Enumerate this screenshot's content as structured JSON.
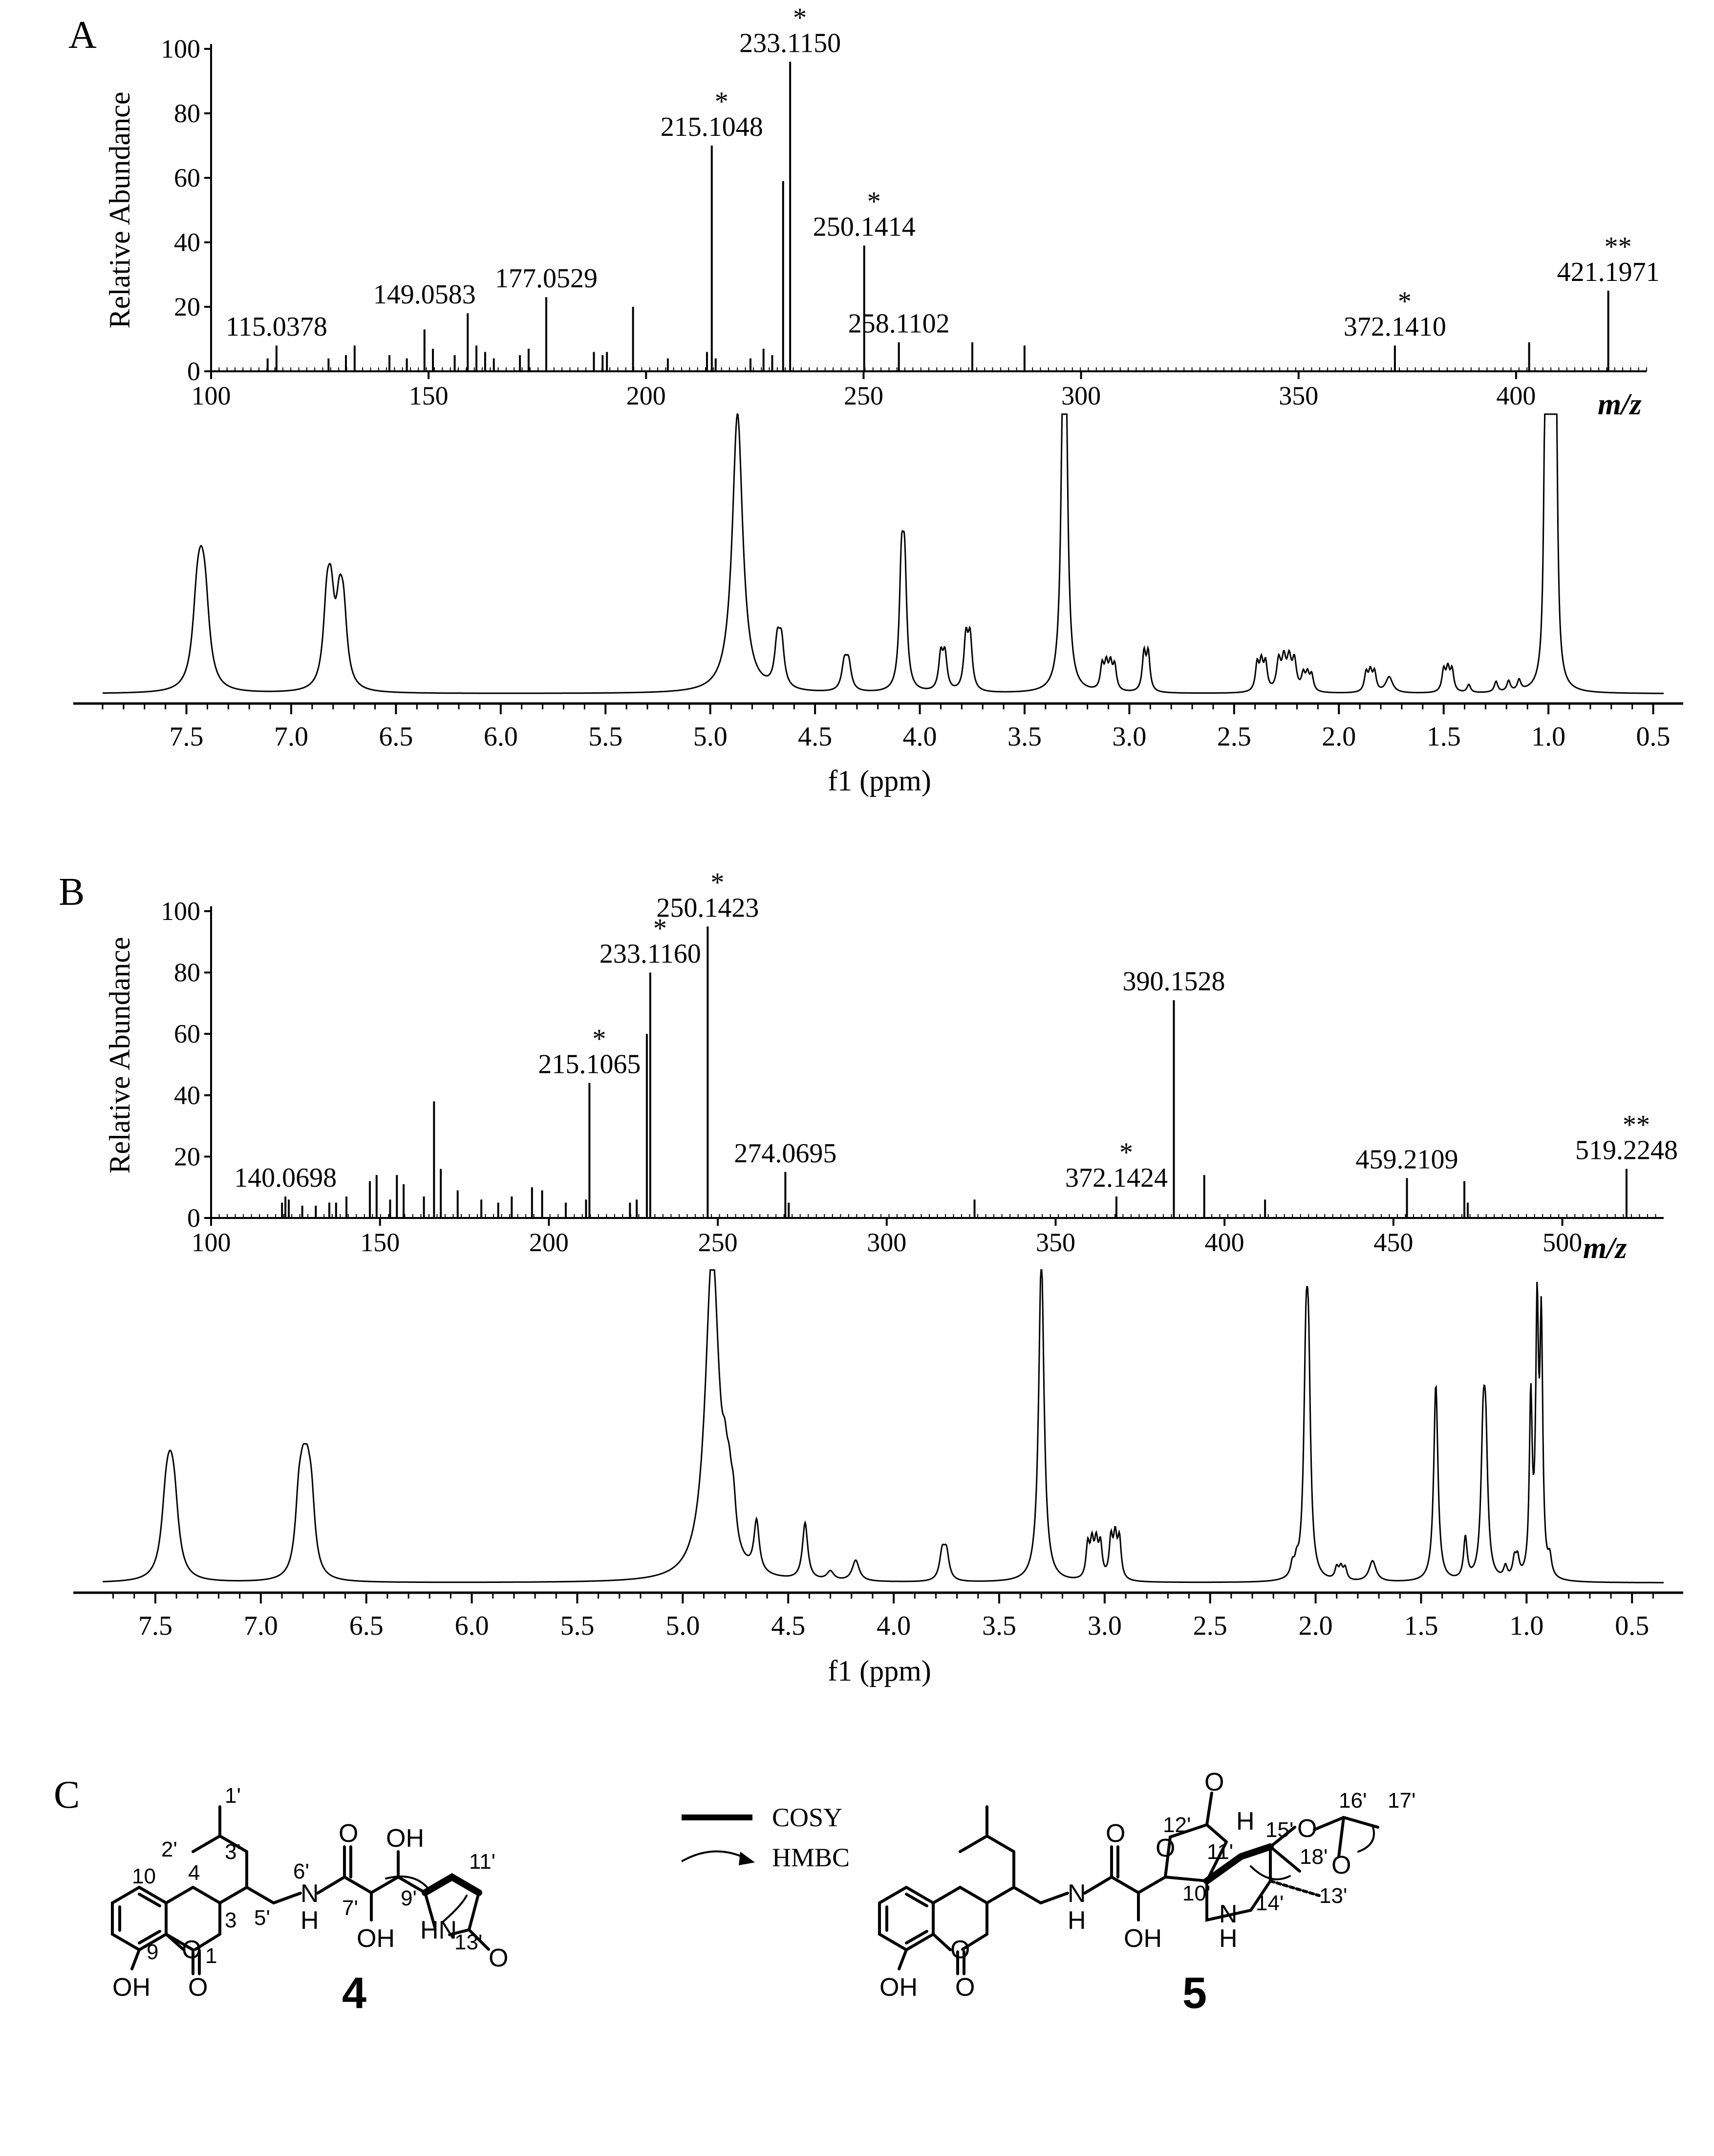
{
  "panel_labels": {
    "a": "A",
    "b": "B",
    "c": "C"
  },
  "ms_axis": {
    "ylabel": "Relative Abundance",
    "xunit": "m/z"
  },
  "nmr_axis": {
    "xlabel": "f1 (ppm)"
  },
  "chart_data": [
    {
      "id": "A-ms",
      "type": "bar",
      "xlim": [
        100,
        430
      ],
      "ylim": [
        0,
        100
      ],
      "xticks": [
        100,
        150,
        200,
        250,
        300,
        350,
        400
      ],
      "yticks": [
        0,
        20,
        40,
        60,
        80,
        100
      ],
      "peaks": [
        {
          "x": 115.0378,
          "y": 8
        },
        {
          "x": 113,
          "y": 4
        },
        {
          "x": 127,
          "y": 4
        },
        {
          "x": 131,
          "y": 5
        },
        {
          "x": 133,
          "y": 8
        },
        {
          "x": 141,
          "y": 5
        },
        {
          "x": 145,
          "y": 4
        },
        {
          "x": 149.0583,
          "y": 13
        },
        {
          "x": 151,
          "y": 7
        },
        {
          "x": 156,
          "y": 5
        },
        {
          "x": 159,
          "y": 18
        },
        {
          "x": 161,
          "y": 8
        },
        {
          "x": 163,
          "y": 6
        },
        {
          "x": 165,
          "y": 4
        },
        {
          "x": 171,
          "y": 5
        },
        {
          "x": 173,
          "y": 7
        },
        {
          "x": 177.0529,
          "y": 23
        },
        {
          "x": 188,
          "y": 6
        },
        {
          "x": 190,
          "y": 5
        },
        {
          "x": 191,
          "y": 6
        },
        {
          "x": 197,
          "y": 20
        },
        {
          "x": 205,
          "y": 4
        },
        {
          "x": 214,
          "y": 6
        },
        {
          "x": 215.1048,
          "y": 70
        },
        {
          "x": 216,
          "y": 4
        },
        {
          "x": 224,
          "y": 4
        },
        {
          "x": 227,
          "y": 7
        },
        {
          "x": 229,
          "y": 5
        },
        {
          "x": 231.5,
          "y": 59
        },
        {
          "x": 233.115,
          "y": 96
        },
        {
          "x": 250.1414,
          "y": 39
        },
        {
          "x": 258.1102,
          "y": 9
        },
        {
          "x": 275,
          "y": 9
        },
        {
          "x": 287,
          "y": 8
        },
        {
          "x": 372.141,
          "y": 8
        },
        {
          "x": 403,
          "y": 9
        },
        {
          "x": 421.1971,
          "y": 25
        }
      ],
      "labels": [
        {
          "x": 115.0378,
          "y": 8,
          "text": "115.0378",
          "star": ""
        },
        {
          "x": 149.0583,
          "y": 18,
          "text": "149.0583",
          "star": ""
        },
        {
          "x": 177.0529,
          "y": 23,
          "text": "177.0529",
          "star": ""
        },
        {
          "x": 215.1048,
          "y": 70,
          "text": "215.1048",
          "star": "*"
        },
        {
          "x": 233.115,
          "y": 96,
          "text": "233.1150",
          "star": "*"
        },
        {
          "x": 250.1414,
          "y": 39,
          "text": "250.1414",
          "star": "*"
        },
        {
          "x": 258.1102,
          "y": 9,
          "text": "258.1102",
          "star": ""
        },
        {
          "x": 372.141,
          "y": 8,
          "text": "372.1410",
          "star": "*"
        },
        {
          "x": 421.1971,
          "y": 25,
          "text": "421.1971",
          "star": "**"
        }
      ]
    },
    {
      "id": "A-nmr",
      "type": "line",
      "xlim": [
        7.9,
        0.45
      ],
      "xticks": [
        7.5,
        7.0,
        6.5,
        6.0,
        5.5,
        5.0,
        4.5,
        4.0,
        3.5,
        3.0,
        2.5,
        2.0,
        1.5,
        1.0,
        0.5
      ],
      "peaks": [
        {
          "x": 7.43,
          "h": 0.25,
          "w": 0.025,
          "n": 3,
          "s": 0.02
        },
        {
          "x": 6.82,
          "h": 0.27,
          "w": 0.02,
          "n": 2,
          "s": 0.02
        },
        {
          "x": 6.76,
          "h": 0.24,
          "w": 0.02,
          "n": 2,
          "s": 0.02
        },
        {
          "x": 4.87,
          "h": 1.05,
          "w": 0.03,
          "n": 1,
          "s": 0
        },
        {
          "x": 4.67,
          "h": 0.16,
          "w": 0.015,
          "n": 2,
          "s": 0.02
        },
        {
          "x": 4.35,
          "h": 0.1,
          "w": 0.015,
          "n": 2,
          "s": 0.02
        },
        {
          "x": 4.08,
          "h": 0.42,
          "w": 0.012,
          "n": 2,
          "s": 0.015
        },
        {
          "x": 3.89,
          "h": 0.13,
          "w": 0.012,
          "n": 2,
          "s": 0.02
        },
        {
          "x": 3.77,
          "h": 0.19,
          "w": 0.012,
          "n": 2,
          "s": 0.02
        },
        {
          "x": 3.31,
          "h": 1.0,
          "w": 0.012,
          "n": 2,
          "s": 0.008
        },
        {
          "x": 3.1,
          "h": 0.09,
          "w": 0.01,
          "n": 4,
          "s": 0.02
        },
        {
          "x": 2.92,
          "h": 0.14,
          "w": 0.01,
          "n": 2,
          "s": 0.02
        },
        {
          "x": 2.37,
          "h": 0.1,
          "w": 0.01,
          "n": 3,
          "s": 0.02
        },
        {
          "x": 2.25,
          "h": 0.11,
          "w": 0.012,
          "n": 4,
          "s": 0.025
        },
        {
          "x": 2.15,
          "h": 0.06,
          "w": 0.01,
          "n": 3,
          "s": 0.02
        },
        {
          "x": 1.85,
          "h": 0.07,
          "w": 0.01,
          "n": 3,
          "s": 0.02
        },
        {
          "x": 1.76,
          "h": 0.06,
          "w": 0.02,
          "n": 1,
          "s": 0
        },
        {
          "x": 1.48,
          "h": 0.08,
          "w": 0.01,
          "n": 3,
          "s": 0.02
        },
        {
          "x": 1.38,
          "h": 0.03,
          "w": 0.01,
          "n": 1,
          "s": 0
        },
        {
          "x": 1.25,
          "h": 0.04,
          "w": 0.01,
          "n": 1,
          "s": 0
        },
        {
          "x": 1.19,
          "h": 0.04,
          "w": 0.01,
          "n": 1,
          "s": 0
        },
        {
          "x": 1.14,
          "h": 0.04,
          "w": 0.01,
          "n": 1,
          "s": 0
        },
        {
          "x": 1.0,
          "h": 1.0,
          "w": 0.008,
          "n": 3,
          "s": 0.015
        },
        {
          "x": 0.97,
          "h": 0.95,
          "w": 0.008,
          "n": 2,
          "s": 0.012
        }
      ]
    },
    {
      "id": "B-ms",
      "type": "bar",
      "xlim": [
        100,
        530
      ],
      "ylim": [
        0,
        100
      ],
      "xticks": [
        100,
        150,
        200,
        250,
        300,
        350,
        400,
        450,
        500
      ],
      "yticks": [
        0,
        20,
        40,
        60,
        80,
        100
      ],
      "peaks": [
        {
          "x": 121,
          "y": 5
        },
        {
          "x": 122,
          "y": 7
        },
        {
          "x": 123,
          "y": 6
        },
        {
          "x": 127,
          "y": 4
        },
        {
          "x": 131,
          "y": 4
        },
        {
          "x": 135,
          "y": 5
        },
        {
          "x": 137,
          "y": 5
        },
        {
          "x": 140.0698,
          "y": 7
        },
        {
          "x": 147,
          "y": 12
        },
        {
          "x": 149,
          "y": 14
        },
        {
          "x": 153,
          "y": 6
        },
        {
          "x": 155,
          "y": 14
        },
        {
          "x": 157,
          "y": 11
        },
        {
          "x": 163,
          "y": 7
        },
        {
          "x": 166,
          "y": 38
        },
        {
          "x": 168,
          "y": 16
        },
        {
          "x": 173,
          "y": 9
        },
        {
          "x": 180,
          "y": 6
        },
        {
          "x": 185,
          "y": 5
        },
        {
          "x": 189,
          "y": 7
        },
        {
          "x": 195,
          "y": 10
        },
        {
          "x": 198,
          "y": 9
        },
        {
          "x": 205,
          "y": 5
        },
        {
          "x": 211,
          "y": 6
        },
        {
          "x": 212,
          "y": 44
        },
        {
          "x": 224,
          "y": 5
        },
        {
          "x": 226,
          "y": 6
        },
        {
          "x": 229,
          "y": 60
        },
        {
          "x": 230,
          "y": 80
        },
        {
          "x": 247,
          "y": 95
        },
        {
          "x": 270,
          "y": 15
        },
        {
          "x": 271,
          "y": 5
        },
        {
          "x": 326,
          "y": 6
        },
        {
          "x": 368,
          "y": 7
        },
        {
          "x": 385,
          "y": 71
        },
        {
          "x": 394,
          "y": 14
        },
        {
          "x": 412,
          "y": 6
        },
        {
          "x": 454,
          "y": 13
        },
        {
          "x": 471,
          "y": 12
        },
        {
          "x": 472,
          "y": 5
        },
        {
          "x": 519,
          "y": 16
        }
      ],
      "labels": [
        {
          "x": 122,
          "y": 7,
          "text": "140.0698",
          "star": ""
        },
        {
          "x": 212,
          "y": 44,
          "text": "215.1065",
          "star": "*"
        },
        {
          "x": 230,
          "y": 80,
          "text": "233.1160",
          "star": "*"
        },
        {
          "x": 247,
          "y": 95,
          "text": "250.1423",
          "star": "*"
        },
        {
          "x": 270,
          "y": 15,
          "text": "274.0695",
          "star": ""
        },
        {
          "x": 368,
          "y": 7,
          "text": "372.1424",
          "star": "*"
        },
        {
          "x": 385,
          "y": 71,
          "text": "390.1528",
          "star": ""
        },
        {
          "x": 454,
          "y": 13,
          "text": "459.2109",
          "star": ""
        },
        {
          "x": 519,
          "y": 16,
          "text": "519.2248",
          "star": "**"
        }
      ]
    },
    {
      "id": "B-nmr",
      "type": "line",
      "xlim": [
        7.75,
        0.35
      ],
      "xticks": [
        7.5,
        7.0,
        6.5,
        6.0,
        5.5,
        5.0,
        4.5,
        4.0,
        3.5,
        3.0,
        2.5,
        2.0,
        1.5,
        1.0,
        0.5
      ],
      "peaks": [
        {
          "x": 7.43,
          "h": 0.2,
          "w": 0.025,
          "n": 3,
          "s": 0.02
        },
        {
          "x": 6.81,
          "h": 0.21,
          "w": 0.02,
          "n": 2,
          "s": 0.02
        },
        {
          "x": 6.77,
          "h": 0.21,
          "w": 0.02,
          "n": 2,
          "s": 0.02
        },
        {
          "x": 4.86,
          "h": 1.1,
          "w": 0.04,
          "n": 1,
          "s": 0
        },
        {
          "x": 4.78,
          "h": 0.14,
          "w": 0.015,
          "n": 3,
          "s": 0.02
        },
        {
          "x": 4.65,
          "h": 0.17,
          "w": 0.015,
          "n": 1,
          "s": 0
        },
        {
          "x": 4.42,
          "h": 0.19,
          "w": 0.015,
          "n": 1,
          "s": 0
        },
        {
          "x": 4.3,
          "h": 0.03,
          "w": 0.02,
          "n": 1,
          "s": 0
        },
        {
          "x": 4.18,
          "h": 0.07,
          "w": 0.02,
          "n": 1,
          "s": 0
        },
        {
          "x": 3.76,
          "h": 0.09,
          "w": 0.015,
          "n": 2,
          "s": 0.02
        },
        {
          "x": 3.3,
          "h": 1.1,
          "w": 0.015,
          "n": 1,
          "s": 0
        },
        {
          "x": 3.05,
          "h": 0.11,
          "w": 0.01,
          "n": 4,
          "s": 0.02
        },
        {
          "x": 2.95,
          "h": 0.13,
          "w": 0.01,
          "n": 3,
          "s": 0.02
        },
        {
          "x": 2.1,
          "h": 0.04,
          "w": 0.01,
          "n": 2,
          "s": 0.02
        },
        {
          "x": 2.04,
          "h": 0.62,
          "w": 0.012,
          "n": 2,
          "s": 0.012
        },
        {
          "x": 1.88,
          "h": 0.04,
          "w": 0.01,
          "n": 3,
          "s": 0.02
        },
        {
          "x": 1.73,
          "h": 0.07,
          "w": 0.02,
          "n": 1,
          "s": 0
        },
        {
          "x": 1.43,
          "h": 0.66,
          "w": 0.012,
          "n": 1,
          "s": 0
        },
        {
          "x": 1.29,
          "h": 0.14,
          "w": 0.01,
          "n": 1,
          "s": 0
        },
        {
          "x": 1.2,
          "h": 0.41,
          "w": 0.012,
          "n": 2,
          "s": 0.012
        },
        {
          "x": 1.1,
          "h": 0.04,
          "w": 0.01,
          "n": 1,
          "s": 0
        },
        {
          "x": 1.05,
          "h": 0.06,
          "w": 0.01,
          "n": 2,
          "s": 0.015
        },
        {
          "x": 0.98,
          "h": 0.59,
          "w": 0.008,
          "n": 1,
          "s": 0
        },
        {
          "x": 0.95,
          "h": 0.86,
          "w": 0.008,
          "n": 1,
          "s": 0
        },
        {
          "x": 0.93,
          "h": 0.82,
          "w": 0.008,
          "n": 1,
          "s": 0
        },
        {
          "x": 0.89,
          "h": 0.06,
          "w": 0.01,
          "n": 1,
          "s": 0
        }
      ]
    }
  ],
  "legend": {
    "cosy": "COSY",
    "hmbc": "HMBC"
  },
  "compound4": {
    "number": "4",
    "atoms": {
      "c1p": "1'",
      "c2p": "2'",
      "c3p": "3'",
      "c4": "4",
      "c10": "10",
      "c3": "3",
      "c5p": "5'",
      "n6p": "6'",
      "c7p": "7'",
      "c9p": "9'",
      "c11p": "11'",
      "c13p": "13'",
      "c9": "9",
      "c1": "1"
    },
    "groups": {
      "oh_top": "OH",
      "oh_bottom": "OH",
      "oh_phenol": "OH",
      "nh": "N",
      "nh_h": "H",
      "hn": "HN",
      "o_ring": "O",
      "o_amide": "O",
      "o_lactone": "O",
      "o_ketone": "O"
    }
  },
  "compound5": {
    "number": "5",
    "atoms": {
      "c12p": "12'",
      "c11p": "11'",
      "c15p": "15'",
      "c16p": "16'",
      "c17p": "17'",
      "c18p": "18'",
      "c10p": "10'",
      "c14p": "14'",
      "c13p": "13'"
    },
    "groups": {
      "h": "H",
      "oh": "OH",
      "oh_phenol": "OH",
      "nh": "N",
      "nh_h": "H",
      "nh2": "N",
      "nh2_h": "H",
      "o_a": "O",
      "o_b": "O",
      "o_c": "O",
      "o_d": "O",
      "o_e": "O",
      "o_f": "O",
      "o_g": "O"
    }
  }
}
